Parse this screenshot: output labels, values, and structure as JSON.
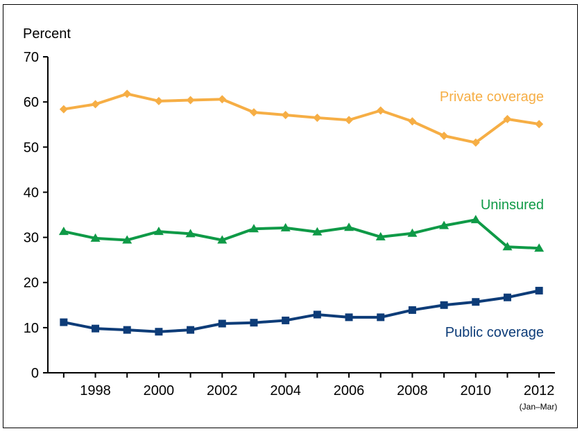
{
  "chart_data": {
    "type": "line",
    "ylabel": "Percent",
    "ylim": [
      0,
      70
    ],
    "yticks": [
      0,
      10,
      20,
      30,
      40,
      50,
      60,
      70
    ],
    "x": [
      1997,
      1998,
      1999,
      2000,
      2001,
      2002,
      2003,
      2004,
      2005,
      2006,
      2007,
      2008,
      2009,
      2010,
      2011,
      2012
    ],
    "xlim": [
      1996.5,
      2012.5
    ],
    "xticks": [
      "1998",
      "2000",
      "2002",
      "2004",
      "2006",
      "2008",
      "2010",
      "2012"
    ],
    "x_note": "(Jan–Mar)",
    "grid": false,
    "series": [
      {
        "name": "Private coverage",
        "color": "#F6AE45",
        "marker": "diamond",
        "values": [
          58.4,
          59.5,
          61.8,
          60.2,
          60.4,
          60.6,
          57.7,
          57.1,
          56.5,
          56.0,
          58.1,
          55.7,
          52.5,
          51.0,
          56.2,
          55.1
        ]
      },
      {
        "name": "Uninsured",
        "color": "#0F9A47",
        "marker": "triangle",
        "values": [
          31.3,
          29.8,
          29.4,
          31.3,
          30.8,
          29.4,
          31.9,
          32.1,
          31.2,
          32.2,
          30.1,
          30.9,
          32.6,
          33.9,
          27.9,
          27.6
        ]
      },
      {
        "name": "Public coverage",
        "color": "#0D3C78",
        "marker": "square",
        "values": [
          11.2,
          9.8,
          9.5,
          9.1,
          9.5,
          10.9,
          11.1,
          11.6,
          12.9,
          12.3,
          12.3,
          13.9,
          15.0,
          15.7,
          16.7,
          18.2
        ]
      }
    ]
  }
}
